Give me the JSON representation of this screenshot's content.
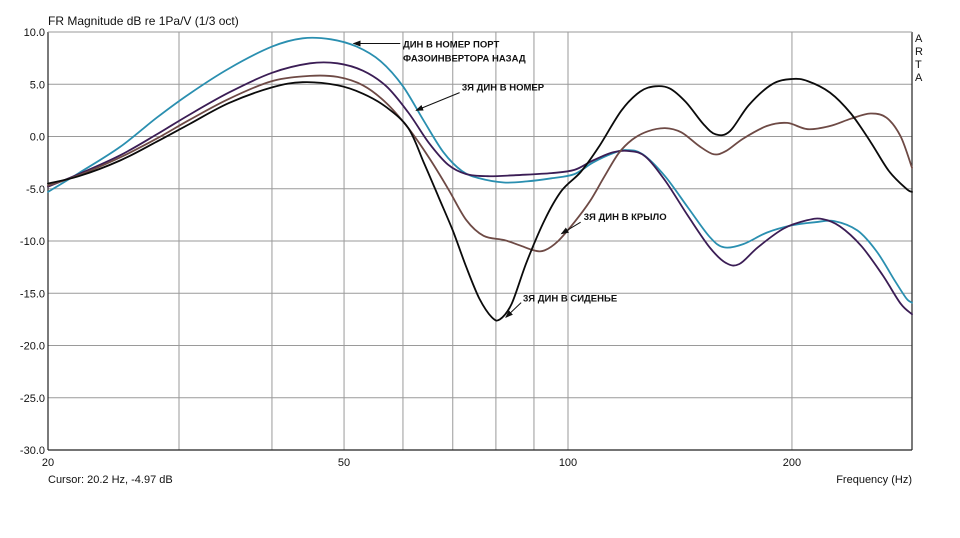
{
  "chart_data": {
    "type": "line",
    "title": "FR Magnitude dB re 1Pa/V (1/3 oct)",
    "brand": [
      "A",
      "R",
      "T",
      "A"
    ],
    "xlabel": "Frequency (Hz)",
    "cursor": "Cursor: 20.2 Hz, -4.97 dB",
    "x_scale": "log",
    "xlim": [
      20,
      290
    ],
    "ylim": [
      -30,
      10
    ],
    "grid": true,
    "y_ticks": [
      10,
      5,
      0,
      -5,
      -10,
      -15,
      -20,
      -25,
      -30
    ],
    "y_tick_labels": [
      "10.0",
      "5.0",
      "0.0",
      "-5.0",
      "-10.0",
      "-15.0",
      "-20.0",
      "-25.0",
      "-30.0"
    ],
    "x_tick_labels": [
      {
        "value": 20,
        "label": "20"
      },
      {
        "value": 50,
        "label": "50"
      },
      {
        "value": 100,
        "label": "100"
      },
      {
        "value": 200,
        "label": "200"
      }
    ],
    "x_grid": [
      30,
      40,
      50,
      60,
      70,
      80,
      90,
      100,
      200
    ],
    "series": [
      {
        "color": "#2a8fb0",
        "points": [
          [
            20,
            -5.3
          ],
          [
            22,
            -3.5
          ],
          [
            25,
            -1.0
          ],
          [
            28,
            1.8
          ],
          [
            31,
            4.1
          ],
          [
            35,
            6.5
          ],
          [
            40,
            8.6
          ],
          [
            44,
            9.4
          ],
          [
            48,
            9.3
          ],
          [
            52,
            8.6
          ],
          [
            56,
            7.2
          ],
          [
            60,
            4.8
          ],
          [
            64,
            1.5
          ],
          [
            68,
            -1.5
          ],
          [
            72,
            -3.3
          ],
          [
            76,
            -4.0
          ],
          [
            82,
            -4.4
          ],
          [
            88,
            -4.3
          ],
          [
            95,
            -4.0
          ],
          [
            102,
            -3.6
          ],
          [
            108,
            -2.5
          ],
          [
            115,
            -1.6
          ],
          [
            120,
            -1.3
          ],
          [
            126,
            -1.7
          ],
          [
            135,
            -3.8
          ],
          [
            145,
            -6.8
          ],
          [
            155,
            -9.6
          ],
          [
            162,
            -10.6
          ],
          [
            172,
            -10.3
          ],
          [
            185,
            -9.2
          ],
          [
            200,
            -8.5
          ],
          [
            215,
            -8.2
          ],
          [
            228,
            -8.1
          ],
          [
            245,
            -9.0
          ],
          [
            260,
            -11.0
          ],
          [
            275,
            -13.8
          ],
          [
            285,
            -15.5
          ],
          [
            290,
            -15.9
          ]
        ]
      },
      {
        "color": "#3b1d55",
        "points": [
          [
            20,
            -4.8
          ],
          [
            22,
            -3.6
          ],
          [
            25,
            -1.8
          ],
          [
            28,
            0.2
          ],
          [
            31,
            2.1
          ],
          [
            35,
            4.2
          ],
          [
            40,
            6.1
          ],
          [
            45,
            7.0
          ],
          [
            49,
            7.0
          ],
          [
            53,
            6.3
          ],
          [
            57,
            4.8
          ],
          [
            61,
            2.3
          ],
          [
            65,
            -0.6
          ],
          [
            69,
            -2.7
          ],
          [
            73,
            -3.6
          ],
          [
            78,
            -3.8
          ],
          [
            85,
            -3.7
          ],
          [
            95,
            -3.5
          ],
          [
            102,
            -3.2
          ],
          [
            108,
            -2.3
          ],
          [
            115,
            -1.5
          ],
          [
            121,
            -1.4
          ],
          [
            127,
            -1.9
          ],
          [
            135,
            -4.2
          ],
          [
            145,
            -7.6
          ],
          [
            155,
            -10.6
          ],
          [
            163,
            -12.1
          ],
          [
            170,
            -12.2
          ],
          [
            180,
            -10.6
          ],
          [
            195,
            -8.8
          ],
          [
            210,
            -8.0
          ],
          [
            220,
            -7.9
          ],
          [
            232,
            -8.6
          ],
          [
            248,
            -10.5
          ],
          [
            265,
            -13.3
          ],
          [
            280,
            -16.0
          ],
          [
            290,
            -17.0
          ]
        ]
      },
      {
        "color": "#6e4a45",
        "points": [
          [
            20,
            -4.7
          ],
          [
            22,
            -3.7
          ],
          [
            25,
            -2.0
          ],
          [
            28,
            -0.2
          ],
          [
            31,
            1.6
          ],
          [
            35,
            3.6
          ],
          [
            40,
            5.3
          ],
          [
            45,
            5.8
          ],
          [
            49,
            5.7
          ],
          [
            53,
            4.9
          ],
          [
            57,
            3.2
          ],
          [
            61,
            0.8
          ],
          [
            65,
            -2.0
          ],
          [
            69,
            -5.0
          ],
          [
            73,
            -8.0
          ],
          [
            77,
            -9.5
          ],
          [
            82,
            -9.9
          ],
          [
            86,
            -10.4
          ],
          [
            90,
            -10.9
          ],
          [
            93,
            -10.9
          ],
          [
            97,
            -10.0
          ],
          [
            102,
            -8.2
          ],
          [
            107,
            -6.2
          ],
          [
            112,
            -3.8
          ],
          [
            117,
            -1.6
          ],
          [
            122,
            -0.3
          ],
          [
            128,
            0.5
          ],
          [
            135,
            0.8
          ],
          [
            142,
            0.4
          ],
          [
            150,
            -0.9
          ],
          [
            157,
            -1.7
          ],
          [
            163,
            -1.4
          ],
          [
            172,
            -0.2
          ],
          [
            185,
            1.0
          ],
          [
            197,
            1.3
          ],
          [
            210,
            0.7
          ],
          [
            225,
            1.0
          ],
          [
            240,
            1.7
          ],
          [
            255,
            2.2
          ],
          [
            268,
            1.8
          ],
          [
            280,
            0.0
          ],
          [
            290,
            -3.0
          ]
        ]
      },
      {
        "color": "#0b0b0b",
        "points": [
          [
            20,
            -4.5
          ],
          [
            22,
            -3.8
          ],
          [
            25,
            -2.3
          ],
          [
            28,
            -0.5
          ],
          [
            31,
            1.2
          ],
          [
            35,
            3.2
          ],
          [
            40,
            4.7
          ],
          [
            44,
            5.2
          ],
          [
            49,
            4.9
          ],
          [
            53,
            4.1
          ],
          [
            57,
            2.8
          ],
          [
            61,
            0.8
          ],
          [
            64,
            -2.5
          ],
          [
            67,
            -5.8
          ],
          [
            70,
            -9.0
          ],
          [
            73,
            -12.5
          ],
          [
            76,
            -15.5
          ],
          [
            79,
            -17.3
          ],
          [
            81,
            -17.5
          ],
          [
            84,
            -16.0
          ],
          [
            88,
            -12.0
          ],
          [
            93,
            -8.0
          ],
          [
            98,
            -5.2
          ],
          [
            104,
            -3.4
          ],
          [
            110,
            -1.0
          ],
          [
            118,
            2.5
          ],
          [
            125,
            4.3
          ],
          [
            131,
            4.8
          ],
          [
            137,
            4.6
          ],
          [
            144,
            3.3
          ],
          [
            152,
            1.2
          ],
          [
            158,
            0.2
          ],
          [
            165,
            0.5
          ],
          [
            175,
            3.0
          ],
          [
            188,
            5.0
          ],
          [
            200,
            5.5
          ],
          [
            210,
            5.3
          ],
          [
            225,
            4.2
          ],
          [
            240,
            2.2
          ],
          [
            255,
            -0.5
          ],
          [
            270,
            -3.3
          ],
          [
            285,
            -5.0
          ],
          [
            290,
            -5.3
          ]
        ]
      }
    ],
    "annotations": [
      {
        "lines": [
          "ДИН В НОМЕР ПОРТ",
          "ФАЗОИНВЕРТОРА НАЗАД"
        ],
        "tx": 60,
        "ty": 8.5,
        "arrow_from": [
          59.5,
          8.9
        ],
        "arrow_to": [
          51.5,
          8.9
        ]
      },
      {
        "lines": [
          "3Я ДИН В НОМЕР"
        ],
        "tx": 72,
        "ty": 4.4,
        "arrow_from": [
          71.5,
          4.2
        ],
        "arrow_to": [
          62.5,
          2.5
        ]
      },
      {
        "lines": [
          "3Я ДИН В КРЫЛО"
        ],
        "tx": 105,
        "ty": -8.0,
        "arrow_from": [
          104,
          -8.2
        ],
        "arrow_to": [
          98,
          -9.3
        ]
      },
      {
        "lines": [
          "3Я ДИН В СИДЕНЬЕ"
        ],
        "tx": 87,
        "ty": -15.8,
        "arrow_from": [
          86.5,
          -15.9
        ],
        "arrow_to": [
          82.5,
          -17.3
        ]
      }
    ]
  }
}
